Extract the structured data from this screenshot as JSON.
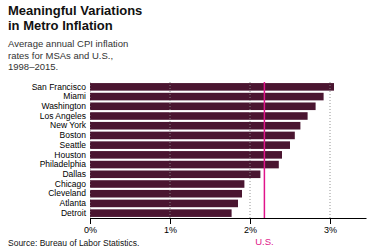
{
  "chart_data": {
    "type": "bar",
    "orientation": "horizontal",
    "title": "Meaningful Variations\nin Metro Inflation",
    "subtitle": "Average annual CPI inflation\nrates for MSAs and U.S.,\n1998–2015.",
    "source": "Source: Bureau of Labor Statistics.",
    "categories": [
      "San Francisco",
      "Miami",
      "Washington",
      "Los Angeles",
      "New York",
      "Boston",
      "Seattle",
      "Houston",
      "Philadelphia",
      "Dallas",
      "Chicago",
      "Cleveland",
      "Atlanta",
      "Detroit"
    ],
    "values": [
      3.05,
      2.92,
      2.82,
      2.72,
      2.63,
      2.56,
      2.5,
      2.4,
      2.36,
      2.13,
      1.93,
      1.9,
      1.85,
      1.77
    ],
    "color": "#4a1530",
    "xlim": [
      0,
      3.45
    ],
    "xticks": [
      {
        "value": 0,
        "label": "0%"
      },
      {
        "value": 1.0,
        "label": "1%"
      },
      {
        "value": 2.0,
        "label": "2%"
      },
      {
        "value": 3.0,
        "label": "3%"
      }
    ],
    "grid": true,
    "annotations": [
      {
        "text": "U.S.",
        "x": 2.18,
        "color": "#e0148a"
      }
    ]
  }
}
